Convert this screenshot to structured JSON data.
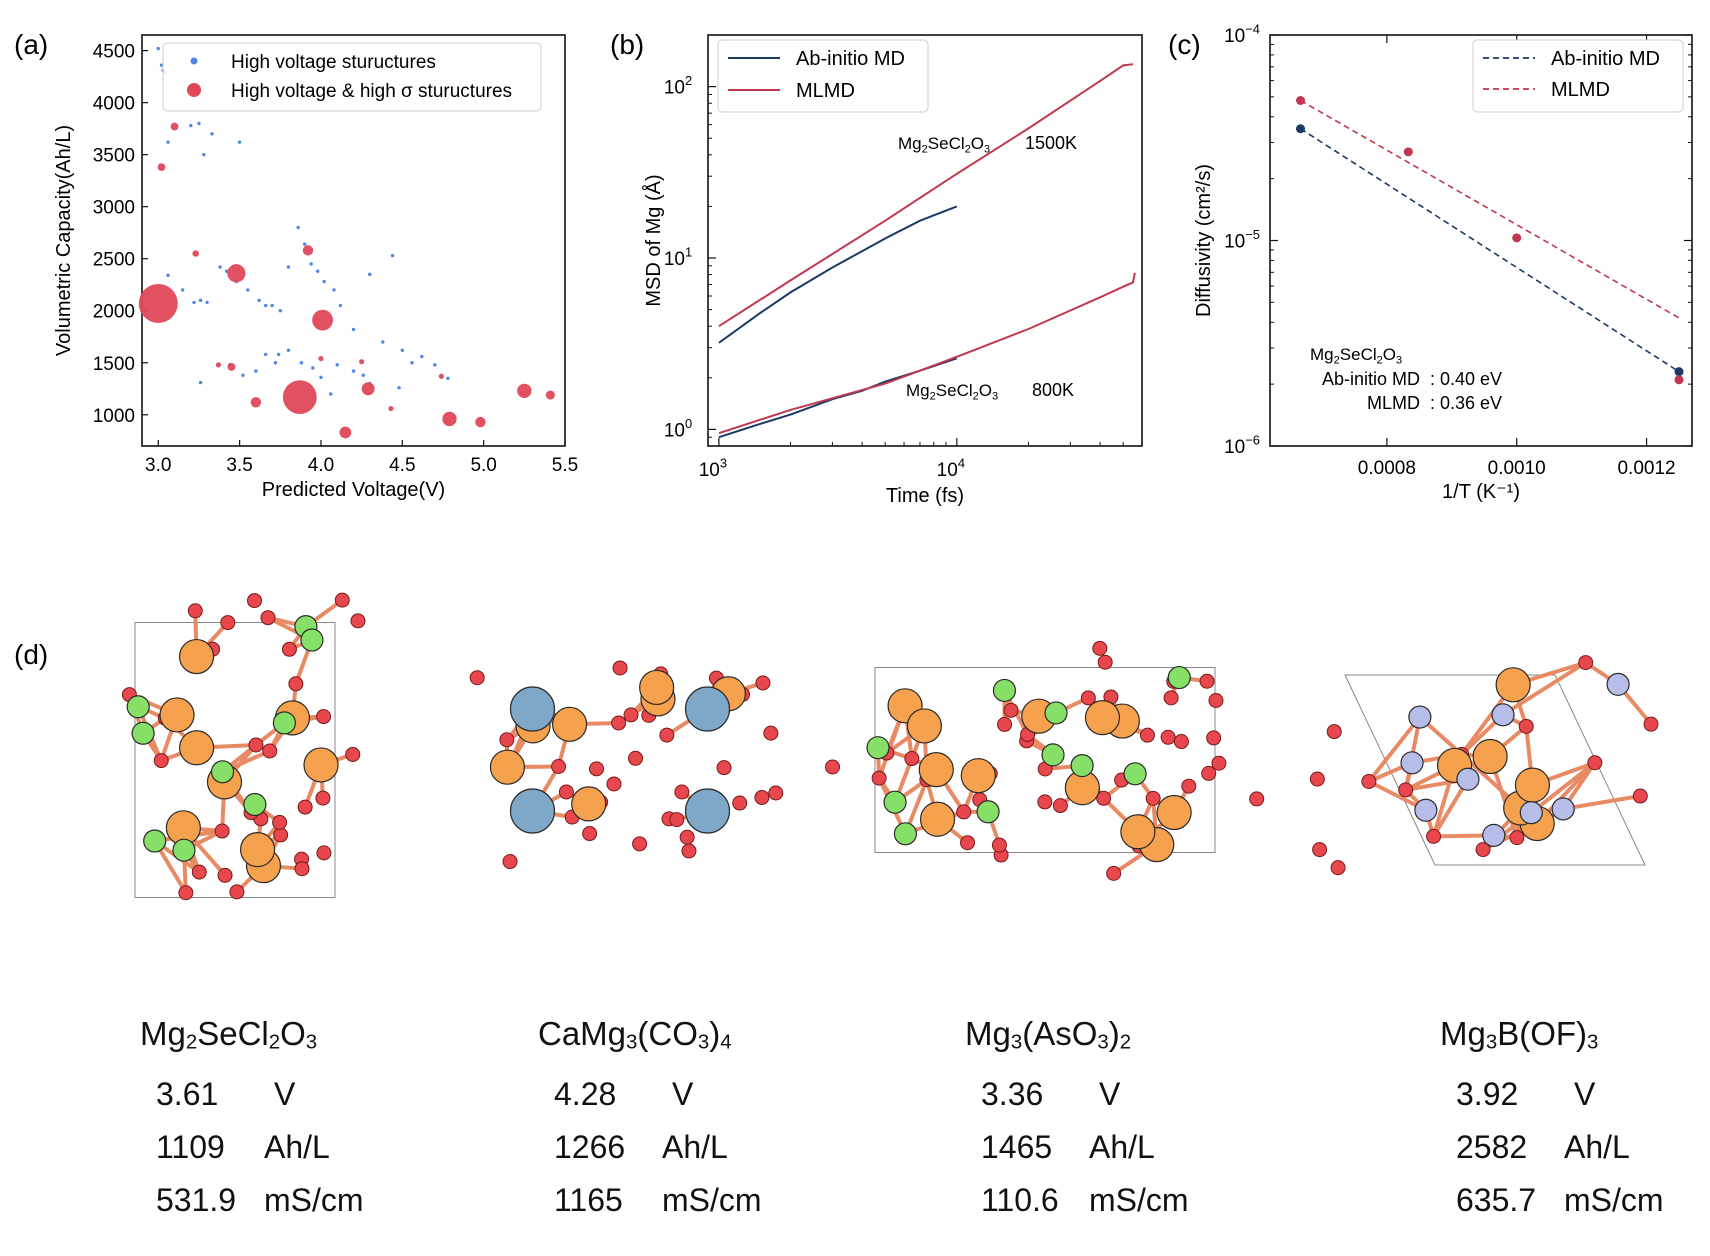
{
  "panels": {
    "a": "(a)",
    "b": "(b)",
    "c": "(c)",
    "d": "(d)"
  },
  "colors": {
    "blue": "#4f86e8",
    "red": "#e0485a",
    "navy": "#1b3a66",
    "crimson": "#c03850",
    "orange": "#f5a14e",
    "green": "#86e067",
    "grey": "#a4a4a4",
    "oxygen": "#e8474e",
    "steel": "#7ea7c8",
    "lavender": "#b6bde8"
  },
  "chart_data": [
    {
      "id": "a",
      "type": "scatter",
      "xlabel": "Predicted Voltage(V)",
      "ylabel": "Volumetric Capacity(Ah/L)",
      "xlim": [
        2.9,
        5.5
      ],
      "ylim": [
        700,
        4650
      ],
      "xticks": [
        "3.0",
        "3.5",
        "4.0",
        "4.5",
        "5.0",
        "5.5"
      ],
      "yticks": [
        "1000",
        "1500",
        "2000",
        "2500",
        "3000",
        "3500",
        "4000",
        "4500"
      ],
      "legend": [
        "High voltage stuructures",
        "High voltage & high σ stuructures"
      ],
      "series": [
        {
          "name": "High voltage stuructures",
          "marker_size": "small",
          "points": [
            [
              3.0,
              4520
            ],
            [
              3.02,
              4360
            ],
            [
              3.03,
              4310
            ],
            [
              3.04,
              4290
            ],
            [
              3.06,
              3620
            ],
            [
              3.2,
              3780
            ],
            [
              3.25,
              3800
            ],
            [
              3.33,
              3700
            ],
            [
              3.5,
              3620
            ],
            [
              3.28,
              3500
            ],
            [
              3.06,
              2340
            ],
            [
              3.15,
              2200
            ],
            [
              3.22,
              2080
            ],
            [
              3.26,
              2100
            ],
            [
              3.3,
              2080
            ],
            [
              3.38,
              2420
            ],
            [
              3.42,
              2380
            ],
            [
              3.48,
              2280
            ],
            [
              3.55,
              2200
            ],
            [
              3.62,
              2100
            ],
            [
              3.66,
              2050
            ],
            [
              3.7,
              2050
            ],
            [
              3.75,
              2000
            ],
            [
              3.8,
              2420
            ],
            [
              3.86,
              2800
            ],
            [
              3.9,
              2640
            ],
            [
              3.94,
              2450
            ],
            [
              3.98,
              2380
            ],
            [
              4.02,
              2280
            ],
            [
              4.08,
              2200
            ],
            [
              4.12,
              2050
            ],
            [
              4.2,
              1820
            ],
            [
              4.3,
              2350
            ],
            [
              4.44,
              2530
            ],
            [
              4.38,
              1700
            ],
            [
              4.5,
              1620
            ],
            [
              4.56,
              1500
            ],
            [
              4.62,
              1560
            ],
            [
              4.7,
              1480
            ],
            [
              4.78,
              1350
            ],
            [
              3.66,
              1580
            ],
            [
              3.74,
              1580
            ],
            [
              3.8,
              1620
            ],
            [
              3.6,
              1420
            ],
            [
              3.72,
              1500
            ],
            [
              3.88,
              1500
            ],
            [
              3.95,
              1450
            ],
            [
              4.0,
              1360
            ],
            [
              4.1,
              1480
            ],
            [
              4.2,
              1420
            ],
            [
              4.26,
              1380
            ],
            [
              4.06,
              1200
            ],
            [
              4.3,
              1300
            ],
            [
              4.48,
              1260
            ],
            [
              4.98,
              960
            ],
            [
              3.26,
              1310
            ],
            [
              3.44,
              1480
            ],
            [
              3.52,
              1380
            ]
          ]
        },
        {
          "name": "High voltage & high σ stuructures",
          "marker_size": "proportional_to_sigma",
          "points": [
            [
              3.0,
              2070,
              30
            ],
            [
              3.02,
              3380,
              6
            ],
            [
              3.1,
              3770,
              6
            ],
            [
              3.23,
              2550,
              5
            ],
            [
              3.48,
              2360,
              14
            ],
            [
              3.45,
              1460,
              6
            ],
            [
              3.37,
              1480,
              4
            ],
            [
              3.6,
              1120,
              8
            ],
            [
              3.87,
              1170,
              26
            ],
            [
              3.92,
              2580,
              8
            ],
            [
              4.01,
              1910,
              16
            ],
            [
              4.0,
              1540,
              4
            ],
            [
              4.15,
              830,
              9
            ],
            [
              4.25,
              1510,
              4
            ],
            [
              4.29,
              1250,
              10
            ],
            [
              4.43,
              1060,
              4
            ],
            [
              4.74,
              1370,
              4
            ],
            [
              4.79,
              960,
              11
            ],
            [
              4.98,
              930,
              8
            ],
            [
              5.25,
              1230,
              11
            ],
            [
              5.41,
              1190,
              7
            ]
          ]
        }
      ]
    },
    {
      "id": "b",
      "type": "line",
      "xscale": "log",
      "yscale": "log",
      "xlabel": "Time (fs)",
      "ylabel": "MSD of Mg (Å)",
      "xlim": [
        900,
        60000
      ],
      "ylim": [
        0.8,
        200
      ],
      "xticks": [
        "10",
        "10"
      ],
      "xtick_exponents": [
        "3",
        "4"
      ],
      "yticks": [
        "10",
        "10",
        "10"
      ],
      "ytick_exponents": [
        "0",
        "1",
        "2"
      ],
      "legend": [
        "Ab-initio MD",
        "MLMD"
      ],
      "annotations": [
        {
          "formula": "Mg2SeCl2O3",
          "label": "1500K"
        },
        {
          "formula": "Mg2SeCl2O3",
          "label": "800K"
        }
      ],
      "series": [
        {
          "name": "Ab-initio MD",
          "condition": "1500K",
          "x": [
            1000,
            1500,
            2000,
            3000,
            5000,
            7000,
            10000
          ],
          "y": [
            3.2,
            4.8,
            6.3,
            8.8,
            13,
            16.5,
            20
          ]
        },
        {
          "name": "MLMD",
          "condition": "1500K",
          "x": [
            1000,
            2000,
            5000,
            10000,
            20000,
            40000,
            50000,
            55000
          ],
          "y": [
            4.0,
            7.4,
            16.5,
            31,
            57,
            108,
            133,
            135
          ]
        },
        {
          "name": "Ab-initio MD",
          "condition": "800K",
          "x": [
            1000,
            1500,
            2000,
            3000,
            4000,
            5000,
            7000,
            10000
          ],
          "y": [
            0.9,
            1.08,
            1.22,
            1.5,
            1.68,
            1.9,
            2.2,
            2.6
          ]
        },
        {
          "name": "MLMD",
          "condition": "800K",
          "x": [
            1000,
            2000,
            5000,
            10000,
            20000,
            40000,
            50000,
            55000,
            56000
          ],
          "y": [
            0.95,
            1.3,
            1.85,
            2.65,
            3.85,
            5.9,
            6.8,
            7.2,
            8.2
          ]
        }
      ]
    },
    {
      "id": "c",
      "type": "scatter",
      "xscale": "linear",
      "yscale": "log",
      "xlabel": "1/T (K⁻¹)",
      "ylabel": "Diffusivity (cm²/s)",
      "xlim": [
        0.00062,
        0.00127
      ],
      "ylim": [
        1e-06,
        0.0001
      ],
      "xticks": [
        "0.0008",
        "0.0010",
        "0.0012"
      ],
      "yticks": [
        "10",
        "10",
        "10"
      ],
      "ytick_exponents": [
        "−6",
        "−5",
        "−4"
      ],
      "legend": [
        "Ab-initio MD",
        "MLMD"
      ],
      "annotation": {
        "formula": "Mg2SeCl2O3",
        "rows": [
          {
            "label": "Ab-initio MD",
            "value": ": 0.40 eV"
          },
          {
            "label": "MLMD",
            "value": ": 0.36 eV"
          }
        ]
      },
      "series": [
        {
          "name": "Ab-initio MD",
          "x": [
            0.000667,
            0.00125
          ],
          "y": [
            3.5e-05,
            2.3e-06
          ],
          "fit": [
            [
              0.000667,
              3.5e-05
            ],
            [
              0.00125,
              2.3e-06
            ]
          ]
        },
        {
          "name": "MLMD",
          "x": [
            0.000667,
            0.000833,
            0.001,
            0.00125
          ],
          "y": [
            4.8e-05,
            2.7e-05,
            1.03e-05,
            2.1e-06
          ],
          "fit": [
            [
              0.000667,
              4.8e-05
            ],
            [
              0.00125,
              4.2e-06
            ]
          ]
        }
      ]
    }
  ],
  "materials": [
    {
      "name_parts": [
        [
          "Mg",
          ""
        ],
        [
          "2",
          "sub"
        ],
        [
          "SeCl",
          ""
        ],
        [
          "2",
          "sub"
        ],
        [
          "O",
          ""
        ],
        [
          "3",
          "sub"
        ]
      ],
      "voltage": "3.61",
      "voltage_unit": "V",
      "capacity": "1109",
      "capacity_unit": "Ah/L",
      "conductivity": "531.9",
      "conductivity_unit": "mS/cm"
    },
    {
      "name_parts": [
        [
          "CaMg",
          ""
        ],
        [
          "3",
          "sub"
        ],
        [
          "(CO",
          ""
        ],
        [
          "3",
          "sub"
        ],
        [
          ")",
          ""
        ],
        [
          "4",
          "sub"
        ]
      ],
      "voltage": "4.28",
      "voltage_unit": "V",
      "capacity": "1266",
      "capacity_unit": "Ah/L",
      "conductivity": "1165",
      "conductivity_unit": "mS/cm"
    },
    {
      "name_parts": [
        [
          "Mg",
          ""
        ],
        [
          "3",
          "sub"
        ],
        [
          "(AsO",
          ""
        ],
        [
          "3",
          "sub"
        ],
        [
          ")",
          ""
        ],
        [
          "2",
          "sub"
        ]
      ],
      "voltage": "3.36",
      "voltage_unit": "V",
      "capacity": "1465",
      "capacity_unit": "Ah/L",
      "conductivity": "110.6",
      "conductivity_unit": "mS/cm"
    },
    {
      "name_parts": [
        [
          "Mg",
          ""
        ],
        [
          "3",
          "sub"
        ],
        [
          "B(OF)",
          ""
        ],
        [
          "3",
          "sub"
        ]
      ],
      "voltage": "3.92",
      "voltage_unit": "V",
      "capacity": "2582",
      "capacity_unit": "Ah/L",
      "conductivity": "635.7",
      "conductivity_unit": "mS/cm"
    }
  ]
}
